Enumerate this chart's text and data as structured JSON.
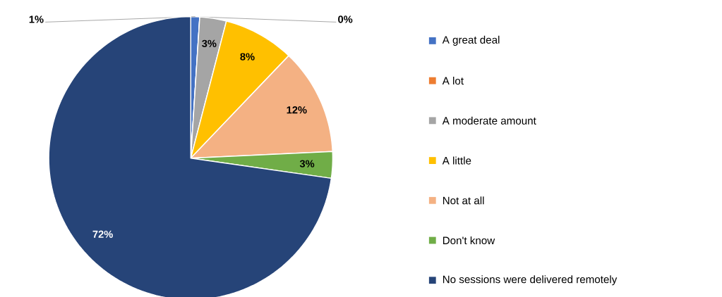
{
  "chart_data": {
    "type": "pie",
    "categories": [
      "A great deal",
      "A lot",
      "A moderate amount",
      "A little",
      "Not at all",
      "Don't know",
      "No sessions were delivered remotely"
    ],
    "values": [
      1,
      0,
      3,
      8,
      12,
      3,
      72
    ],
    "value_labels": [
      "1%",
      "0%",
      "3%",
      "8%",
      "12%",
      "3%",
      "72%"
    ],
    "colors": [
      "#4472c4",
      "#ed7d31",
      "#a5a5a5",
      "#ffc000",
      "#f4b183",
      "#70ad47",
      "#264478"
    ],
    "legend": "right"
  }
}
